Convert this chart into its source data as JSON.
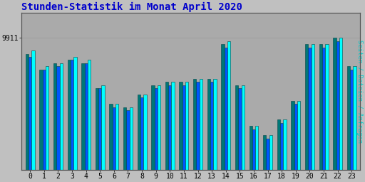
{
  "title": "Stunden-Statistik im Monat April 2020",
  "ylabel": "Seiten / Dateien / Anfragen",
  "ytick_label": "9911",
  "xlabel_categories": [
    0,
    1,
    2,
    3,
    4,
    5,
    6,
    7,
    8,
    9,
    10,
    11,
    12,
    13,
    14,
    15,
    16,
    17,
    18,
    19,
    20,
    21,
    22,
    23
  ],
  "background_color": "#c0c0c0",
  "plot_bg_color": "#aaaaaa",
  "title_color": "#0000cc",
  "ylabel_color": "#00cccc",
  "bar_cyan": "#00ffff",
  "bar_blue": "#0055ff",
  "bar_teal": "#007777",
  "bar_edge": "#004444",
  "ylim_min": 0.55,
  "ylim_max": 1.05,
  "ytick_pos": 0.97,
  "series_cyan": [
    0.93,
    0.88,
    0.89,
    0.91,
    0.9,
    0.82,
    0.76,
    0.75,
    0.79,
    0.82,
    0.83,
    0.83,
    0.84,
    0.84,
    0.96,
    0.82,
    0.69,
    0.66,
    0.71,
    0.77,
    0.95,
    0.95,
    0.97,
    0.88
  ],
  "series_blue": [
    0.91,
    0.87,
    0.88,
    0.9,
    0.89,
    0.81,
    0.75,
    0.74,
    0.78,
    0.81,
    0.82,
    0.82,
    0.83,
    0.83,
    0.94,
    0.81,
    0.68,
    0.65,
    0.7,
    0.76,
    0.94,
    0.94,
    0.96,
    0.87
  ],
  "series_teal": [
    0.92,
    0.87,
    0.89,
    0.9,
    0.89,
    0.81,
    0.76,
    0.75,
    0.79,
    0.82,
    0.83,
    0.83,
    0.84,
    0.84,
    0.95,
    0.82,
    0.69,
    0.66,
    0.71,
    0.77,
    0.95,
    0.95,
    0.97,
    0.88
  ],
  "grid_color": "#999999",
  "tick_fontsize": 7,
  "title_fontsize": 10,
  "grid_yticks": [
    0.6,
    0.65,
    0.7,
    0.75,
    0.8,
    0.85,
    0.9,
    0.95,
    1.0
  ]
}
